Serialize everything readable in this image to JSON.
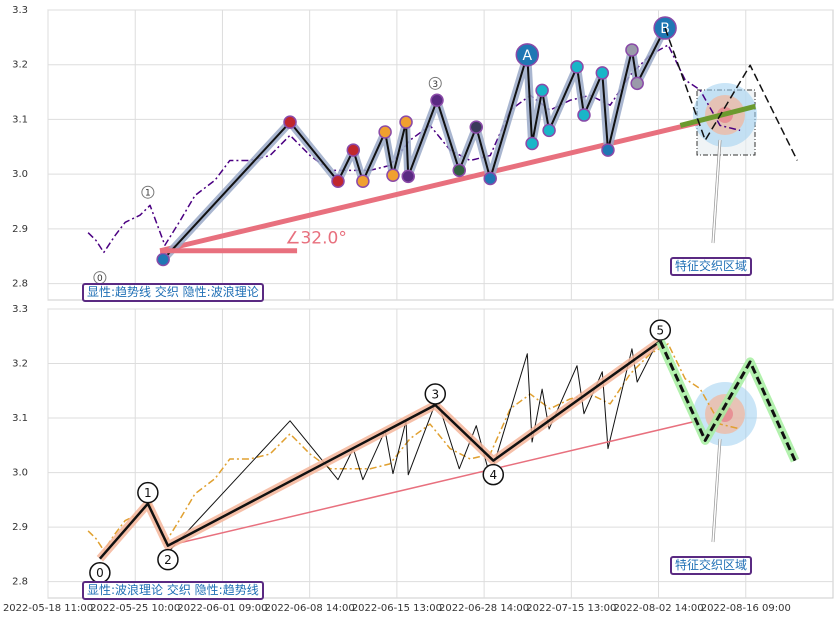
{
  "chart_data": [
    {
      "type": "line",
      "xlim": [
        0,
        180
      ],
      "ylim": [
        2.77,
        3.3
      ],
      "yticks": [
        2.8,
        2.9,
        {
          "value": 3.0,
          "label": "3.0"
        },
        3.1,
        3.2,
        3.3
      ],
      "grid": true,
      "note": "显性:趋势线 交织 隐性:波浪理论",
      "region_label": "特征交织区域",
      "series": [
        {
          "style": "dashdot",
          "color": "#4b0082",
          "width": 1.5,
          "x": [
            9.2,
            11.0,
            12.8,
            15.4,
            17.7,
            21.1,
            23.4,
            26.8,
            30.3,
            33.7,
            38.3,
            41.7,
            46.3,
            50.9,
            55.5,
            60.1,
            64.7,
            69.3,
            73.9,
            78.4,
            83.0,
            87.6,
            92.2,
            96.8,
            101.4,
            106.0,
            110.6,
            115.1,
            119.7,
            124.3,
            128.9,
            133.5,
            138.1,
            142.2,
            146.1,
            149.5,
            154.1,
            158.7
          ],
          "values": [
            2.893,
            2.879,
            2.857,
            2.888,
            2.912,
            2.925,
            2.943,
            2.87,
            2.915,
            2.961,
            2.989,
            3.025,
            3.025,
            3.034,
            3.071,
            3.034,
            3.007,
            3.007,
            3.007,
            3.016,
            3.062,
            3.089,
            3.044,
            3.025,
            3.034,
            3.117,
            3.144,
            3.117,
            3.135,
            3.144,
            3.126,
            3.181,
            3.218,
            3.236,
            3.172,
            3.154,
            3.089,
            3.08
          ]
        },
        {
          "style": "solid",
          "color": "#e8707e",
          "width": 5,
          "x": [
            25.7,
            149.5
          ],
          "values": [
            2.86,
            3.095
          ]
        },
        {
          "style": "solid",
          "color": "#6b9a2e",
          "width": 5,
          "x": [
            145.0,
            162.2
          ],
          "values": [
            3.089,
            3.124
          ]
        },
        {
          "style": "solid",
          "color": "#111111",
          "width": 2,
          "halo": "#9aa9c8",
          "x": [
            26.4,
            55.5,
            66.5,
            70.0,
            72.2,
            77.3,
            79.1,
            82.1,
            82.6,
            89.2,
            94.3,
            98.2,
            101.4,
            109.9,
            111.0,
            113.3,
            114.9,
            121.3,
            122.9,
            127.1,
            128.4,
            133.9,
            135.1,
            141.5
          ],
          "values": [
            2.844,
            3.095,
            2.987,
            3.044,
            2.987,
            3.077,
            2.998,
            3.095,
            2.996,
            3.135,
            3.007,
            3.086,
            2.992,
            3.218,
            3.056,
            3.153,
            3.08,
            3.196,
            3.108,
            3.185,
            3.044,
            3.227,
            3.166,
            3.267
          ],
          "marker_colors": [
            "#1f77b4",
            "#c0272d",
            "#c0272d",
            "#c0272d",
            "#f0a030",
            "#f0a030",
            "#f0a030",
            "#f0a030",
            "#5a2a82",
            "#5a2a82",
            "#2f5f3f",
            "#3a3a5a",
            "#1f77b4",
            "#1f77b4",
            "#19b5c8",
            "#19b5c8",
            "#19b5c8",
            "#19b5c8",
            "#19b5c8",
            "#19b5c8",
            "#1f77b4",
            "#9a9aaa",
            "#9a9aaa",
            "#1f77b4"
          ],
          "point_labels": [
            null,
            null,
            null,
            null,
            null,
            null,
            null,
            null,
            null,
            null,
            null,
            null,
            null,
            "A",
            null,
            null,
            null,
            null,
            null,
            null,
            null,
            null,
            null,
            "B"
          ]
        },
        {
          "style": "dashed",
          "color": "#111111",
          "width": 1.5,
          "x": [
            141.5,
            150.7,
            161.0,
            171.8
          ],
          "values": [
            3.267,
            3.062,
            3.199,
            3.025
          ]
        }
      ],
      "annotations": [
        {
          "text": "0",
          "x": 11.9,
          "y": 2.811
        },
        {
          "text": "1",
          "x": 22.9,
          "y": 2.967
        },
        {
          "text": "3",
          "x": 88.8,
          "y": 3.166
        }
      ],
      "angle_label": {
        "text": "∠32.0°",
        "x": 54.4,
        "y": 2.882,
        "color": "#e8707e"
      }
    },
    {
      "type": "line",
      "xlim": [
        0,
        180
      ],
      "ylim": [
        2.77,
        3.3
      ],
      "yticks": [
        2.8,
        2.9,
        {
          "value": 3.0,
          "label": "3.0"
        },
        3.1,
        3.2,
        3.3
      ],
      "xticks": [
        {
          "value": 0,
          "label": "2022-05-18 11:00"
        },
        {
          "value": 20,
          "label": "2022-05-25 10:00"
        },
        {
          "value": 40,
          "label": "2022-06-01 09:00"
        },
        {
          "value": 60,
          "label": "2022-06-08 14:00"
        },
        {
          "value": 80,
          "label": "2022-06-15 13:00"
        },
        {
          "value": 100,
          "label": "2022-06-28 14:00"
        },
        {
          "value": 120,
          "label": "2022-07-15 13:00"
        },
        {
          "value": 140,
          "label": "2022-08-02 14:00"
        },
        {
          "value": 160,
          "label": "2022-08-16 09:00"
        }
      ],
      "grid": true,
      "note": "显性:波浪理论 交织 隐性:趋势线",
      "region_label": "特征交织区域",
      "series": [
        {
          "style": "dashdot",
          "color": "#e0a030",
          "width": 1.5,
          "x": [
            9.2,
            11.0,
            12.8,
            15.4,
            17.7,
            21.1,
            23.4,
            26.8,
            30.3,
            33.7,
            38.3,
            41.7,
            46.3,
            50.9,
            55.5,
            60.1,
            64.7,
            69.3,
            73.9,
            78.4,
            83.0,
            87.6,
            92.2,
            96.8,
            101.4,
            106.0,
            110.6,
            115.1,
            119.7,
            124.3,
            128.9,
            133.5,
            138.1,
            142.2,
            146.1,
            149.5,
            154.1,
            158.7
          ],
          "values": [
            2.893,
            2.879,
            2.857,
            2.888,
            2.912,
            2.925,
            2.943,
            2.87,
            2.915,
            2.961,
            2.989,
            3.025,
            3.025,
            3.034,
            3.071,
            3.034,
            3.007,
            3.007,
            3.007,
            3.016,
            3.062,
            3.089,
            3.044,
            3.025,
            3.034,
            3.117,
            3.144,
            3.117,
            3.135,
            3.144,
            3.126,
            3.181,
            3.218,
            3.236,
            3.172,
            3.154,
            3.089,
            3.08
          ]
        },
        {
          "style": "solid",
          "color": "#111111",
          "width": 1,
          "x": [
            26.4,
            55.5,
            66.5,
            70.0,
            72.2,
            77.3,
            79.1,
            82.1,
            82.6,
            89.2,
            94.3,
            98.2,
            101.4,
            109.9,
            111.0,
            113.3,
            114.9,
            121.3,
            122.9,
            127.1,
            128.4,
            133.9,
            135.1,
            141.5
          ],
          "values": [
            2.844,
            3.095,
            2.987,
            3.044,
            2.987,
            3.077,
            2.998,
            3.095,
            2.996,
            3.135,
            3.007,
            3.086,
            2.992,
            3.218,
            3.056,
            3.153,
            3.08,
            3.196,
            3.108,
            3.185,
            3.044,
            3.227,
            3.166,
            3.267
          ]
        },
        {
          "style": "solid",
          "color": "#e8707e",
          "width": 1.5,
          "x": [
            27.5,
            149.5
          ],
          "values": [
            2.866,
            3.096
          ]
        },
        {
          "style": "solid",
          "color": "#111111",
          "width": 2.5,
          "halo": "#f4b59a",
          "x": [
            11.9,
            22.9,
            27.5,
            88.8,
            102.1,
            140.4
          ],
          "values": [
            2.842,
            2.943,
            2.866,
            3.124,
            3.022,
            3.241
          ],
          "wave_labels": [
            "0",
            "1",
            "2",
            "3",
            "4",
            "5"
          ]
        },
        {
          "style": "dashed",
          "color": "#111111",
          "width": 3,
          "halo": "#a6eea0",
          "x": [
            140.4,
            150.7,
            161.0,
            171.3
          ],
          "values": [
            3.241,
            3.059,
            3.203,
            3.022
          ]
        }
      ]
    }
  ]
}
